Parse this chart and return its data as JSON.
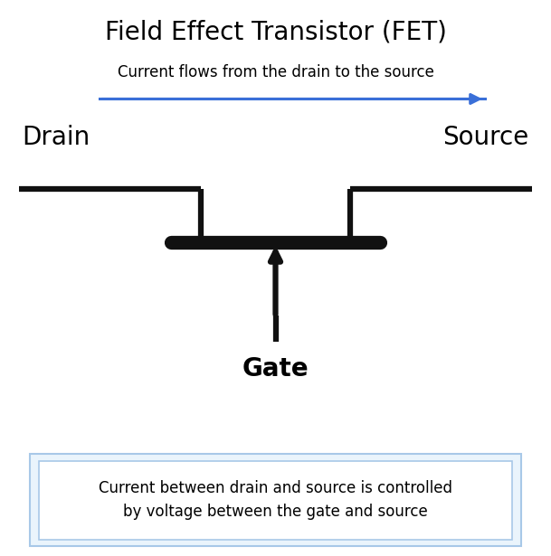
{
  "title": "Field Effect Transistor (FET)",
  "title_fontsize": 20,
  "subtitle": "Current flows from the drain to the source",
  "subtitle_fontsize": 12,
  "drain_label": "Drain",
  "source_label": "Source",
  "gate_label": "Gate",
  "drain_source_label_fontsize": 20,
  "gate_label_fontsize": 20,
  "caption": "Current between drain and source is controlled\nby voltage between the gate and source",
  "caption_fontsize": 12,
  "background_color": "#ffffff",
  "arrow_color": "#3a6fd8",
  "title_color": "#000000",
  "fet_color": "#111111",
  "caption_box_edge_color": "#a8c8e8",
  "caption_box_face_color": "#eaf4fc",
  "arrow_lw": 2.2,
  "fet_lw": 4.5,
  "gate_bar_lw": 11,
  "xlim": [
    0,
    10
  ],
  "ylim": [
    0,
    10
  ]
}
